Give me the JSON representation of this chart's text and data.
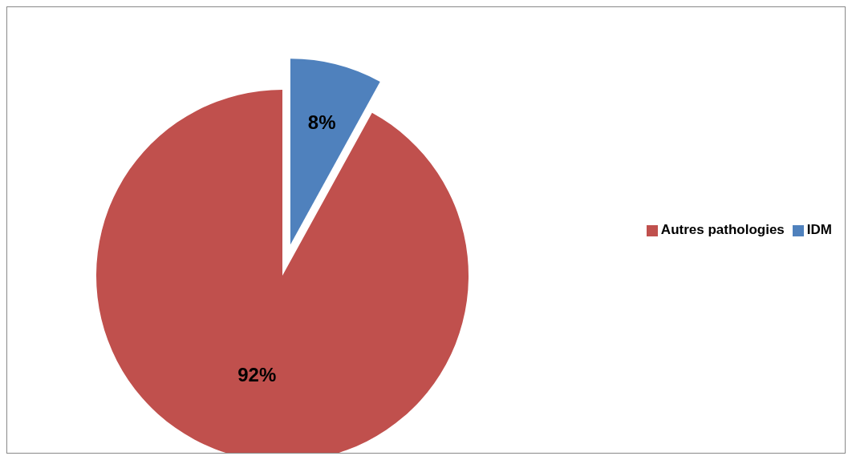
{
  "chart_data": {
    "type": "pie",
    "categories": [
      "IDM",
      "Autres pathologies"
    ],
    "values": [
      8,
      92
    ],
    "colors": [
      "#4f81bd",
      "#c0504d"
    ],
    "value_labels": [
      "8%",
      "92%"
    ],
    "legend": "right"
  }
}
